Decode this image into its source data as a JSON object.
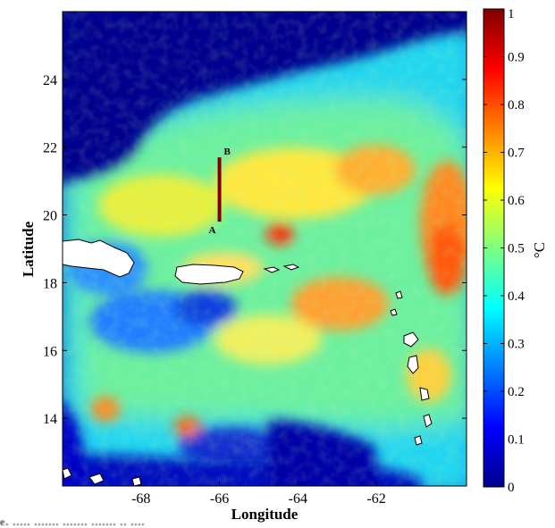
{
  "map": {
    "x_axis_title": "Longitude",
    "y_axis_title": "Latitude",
    "x_range": [
      -70,
      -59.7
    ],
    "y_range": [
      12,
      26
    ],
    "x_ticks": [
      {
        "value": -68,
        "label": "-68"
      },
      {
        "value": -66,
        "label": "-66"
      },
      {
        "value": -64,
        "label": "-64"
      },
      {
        "value": -62,
        "label": "-62"
      }
    ],
    "y_ticks": [
      {
        "value": 14,
        "label": "14"
      },
      {
        "value": 16,
        "label": "16"
      },
      {
        "value": 18,
        "label": "18"
      },
      {
        "value": 20,
        "label": "20"
      },
      {
        "value": 22,
        "label": "22"
      },
      {
        "value": 24,
        "label": "24"
      }
    ],
    "section_line": {
      "start_label": "A",
      "end_label": "B",
      "lon": -66,
      "lat_start": 19.8,
      "lat_end": 21.7,
      "color": "#7f0000"
    },
    "land_color": "#ffffff"
  },
  "colorbar": {
    "unit_label": "°C",
    "min": 0,
    "max": 1,
    "ticks": [
      "0",
      "0.1",
      "0.2",
      "0.3",
      "0.4",
      "0.5",
      "0.6",
      "0.7",
      "0.8",
      "0.9",
      "1"
    ],
    "colors": [
      "#00008f",
      "#0000ff",
      "#0080ff",
      "#00ffff",
      "#80ff80",
      "#ffff00",
      "#ff8000",
      "#ff0000",
      "#800000"
    ]
  },
  "caption_fragment": "e. ..... ....... ....... ....... .. ...."
}
